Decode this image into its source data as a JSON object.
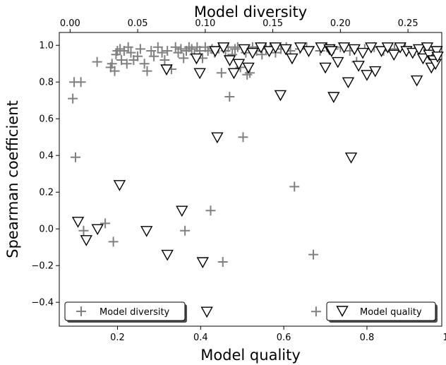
{
  "chart_data": {
    "type": "scatter",
    "title": "",
    "xlabel": "Model quality",
    "ylabel": "Spearman coefficient",
    "x2label": "Model diversity",
    "xlim": [
      0.06,
      0.98
    ],
    "x2lim": [
      -0.008,
      0.275
    ],
    "ylim": [
      -0.53,
      1.07
    ],
    "xticks": [
      0.2,
      0.4,
      0.6,
      0.8,
      1.0
    ],
    "xtick_labels": [
      "0.2",
      "0.4",
      "0.6",
      "0.8",
      "1.0"
    ],
    "x2ticks": [
      0.0,
      0.05,
      0.1,
      0.15,
      0.2,
      0.25
    ],
    "x2tick_labels": [
      "0.00",
      "0.05",
      "0.10",
      "0.15",
      "0.20",
      "0.25"
    ],
    "yticks": [
      -0.4,
      -0.2,
      0.0,
      0.2,
      0.4,
      0.6,
      0.8,
      1.0
    ],
    "ytick_labels": [
      "−0.4",
      "−0.2",
      "0.0",
      "0.2",
      "0.4",
      "0.6",
      "0.8",
      "1.0"
    ],
    "grid": false,
    "legends": [
      {
        "position": "lower-left",
        "label": "Model diversity",
        "marker": "plus",
        "color": "#808080"
      },
      {
        "position": "lower-right",
        "label": "Model quality",
        "marker": "triangle-down",
        "color": "#000000"
      }
    ],
    "series": [
      {
        "name": "Model diversity",
        "x_axis": "top",
        "marker": "plus",
        "color": "#808080",
        "points": [
          [
            0.002,
            0.71
          ],
          [
            0.003,
            0.8
          ],
          [
            0.004,
            0.39
          ],
          [
            0.008,
            0.8
          ],
          [
            0.01,
            -0.01
          ],
          [
            0.02,
            0.91
          ],
          [
            0.026,
            0.03
          ],
          [
            0.03,
            0.88
          ],
          [
            0.031,
            0.9
          ],
          [
            0.032,
            -0.07
          ],
          [
            0.033,
            0.86
          ],
          [
            0.034,
            0.95
          ],
          [
            0.035,
            0.97
          ],
          [
            0.037,
            0.98
          ],
          [
            0.038,
            0.92
          ],
          [
            0.04,
            0.97
          ],
          [
            0.042,
            0.9
          ],
          [
            0.043,
            0.99
          ],
          [
            0.045,
            0.96
          ],
          [
            0.047,
            0.92
          ],
          [
            0.05,
            0.94
          ],
          [
            0.052,
            0.98
          ],
          [
            0.055,
            0.9
          ],
          [
            0.057,
            0.86
          ],
          [
            0.06,
            0.97
          ],
          [
            0.062,
            0.94
          ],
          [
            0.065,
            0.99
          ],
          [
            0.068,
            0.96
          ],
          [
            0.07,
            0.92
          ],
          [
            0.072,
            0.97
          ],
          [
            0.075,
            0.87
          ],
          [
            0.078,
            0.99
          ],
          [
            0.08,
            0.96
          ],
          [
            0.082,
            0.98
          ],
          [
            0.084,
            0.93
          ],
          [
            0.085,
            -0.01
          ],
          [
            0.086,
            0.97
          ],
          [
            0.088,
            0.99
          ],
          [
            0.09,
            0.98
          ],
          [
            0.092,
            0.95
          ],
          [
            0.094,
            0.99
          ],
          [
            0.096,
            0.97
          ],
          [
            0.098,
            0.93
          ],
          [
            0.1,
            0.99
          ],
          [
            0.102,
            0.97
          ],
          [
            0.104,
            0.1
          ],
          [
            0.105,
            0.98
          ],
          [
            0.107,
            0.96
          ],
          [
            0.11,
            0.99
          ],
          [
            0.112,
            0.85
          ],
          [
            0.113,
            -0.18
          ],
          [
            0.115,
            0.97
          ],
          [
            0.117,
            0.99
          ],
          [
            0.118,
            0.72
          ],
          [
            0.12,
            0.95
          ],
          [
            0.122,
            0.98
          ],
          [
            0.124,
            0.99
          ],
          [
            0.126,
            0.88
          ],
          [
            0.128,
            0.5
          ],
          [
            0.13,
            0.96
          ],
          [
            0.131,
            0.84
          ],
          [
            0.133,
            0.85
          ],
          [
            0.135,
            0.99
          ],
          [
            0.138,
            0.97
          ],
          [
            0.14,
            0.99
          ],
          [
            0.142,
            0.95
          ],
          [
            0.145,
            0.98
          ],
          [
            0.148,
            0.99
          ],
          [
            0.152,
            0.96
          ],
          [
            0.156,
            0.98
          ],
          [
            0.16,
            0.99
          ],
          [
            0.163,
            0.97
          ],
          [
            0.166,
            0.23
          ],
          [
            0.17,
            0.98
          ],
          [
            0.175,
            0.99
          ],
          [
            0.18,
            -0.14
          ],
          [
            0.182,
            -0.45
          ],
          [
            0.185,
            0.97
          ],
          [
            0.19,
            0.99
          ],
          [
            0.195,
            0.98
          ],
          [
            0.2,
            0.99
          ],
          [
            0.207,
            0.97
          ],
          [
            0.212,
            0.91
          ],
          [
            0.218,
            0.98
          ],
          [
            0.225,
            0.99
          ],
          [
            0.232,
            0.97
          ],
          [
            0.24,
            0.98
          ],
          [
            0.248,
            0.99
          ],
          [
            0.255,
            0.97
          ],
          [
            0.262,
            0.99
          ]
        ]
      },
      {
        "name": "Model quality",
        "x_axis": "bottom",
        "marker": "triangle-down",
        "color": "#000000",
        "points": [
          [
            0.105,
            0.04
          ],
          [
            0.125,
            -0.06
          ],
          [
            0.152,
            0.0
          ],
          [
            0.205,
            0.24
          ],
          [
            0.27,
            -0.01
          ],
          [
            0.318,
            0.87
          ],
          [
            0.32,
            -0.14
          ],
          [
            0.355,
            0.1
          ],
          [
            0.39,
            0.93
          ],
          [
            0.398,
            0.85
          ],
          [
            0.405,
            -0.18
          ],
          [
            0.415,
            -0.45
          ],
          [
            0.435,
            0.97
          ],
          [
            0.44,
            0.5
          ],
          [
            0.455,
            0.99
          ],
          [
            0.47,
            0.92
          ],
          [
            0.48,
            0.85
          ],
          [
            0.492,
            0.9
          ],
          [
            0.505,
            0.98
          ],
          [
            0.515,
            0.88
          ],
          [
            0.525,
            0.96
          ],
          [
            0.545,
            0.99
          ],
          [
            0.565,
            0.97
          ],
          [
            0.58,
            0.99
          ],
          [
            0.592,
            0.73
          ],
          [
            0.605,
            0.98
          ],
          [
            0.62,
            0.93
          ],
          [
            0.64,
            0.99
          ],
          [
            0.66,
            0.97
          ],
          [
            0.69,
            0.99
          ],
          [
            0.7,
            0.88
          ],
          [
            0.71,
            0.98
          ],
          [
            0.715,
            0.97
          ],
          [
            0.72,
            0.72
          ],
          [
            0.73,
            0.91
          ],
          [
            0.745,
            0.99
          ],
          [
            0.755,
            0.8
          ],
          [
            0.762,
            0.39
          ],
          [
            0.77,
            0.98
          ],
          [
            0.78,
            0.89
          ],
          [
            0.79,
            0.96
          ],
          [
            0.8,
            0.84
          ],
          [
            0.81,
            0.99
          ],
          [
            0.82,
            0.86
          ],
          [
            0.835,
            0.97
          ],
          [
            0.85,
            0.99
          ],
          [
            0.865,
            0.95
          ],
          [
            0.88,
            0.99
          ],
          [
            0.895,
            0.97
          ],
          [
            0.91,
            0.96
          ],
          [
            0.92,
            0.81
          ],
          [
            0.925,
            0.98
          ],
          [
            0.935,
            0.93
          ],
          [
            0.945,
            0.99
          ],
          [
            0.95,
            0.95
          ],
          [
            0.955,
            0.88
          ],
          [
            0.96,
            0.92
          ],
          [
            0.965,
            0.9
          ],
          [
            0.968,
            0.97
          ],
          [
            0.97,
            0.94
          ]
        ]
      }
    ]
  }
}
